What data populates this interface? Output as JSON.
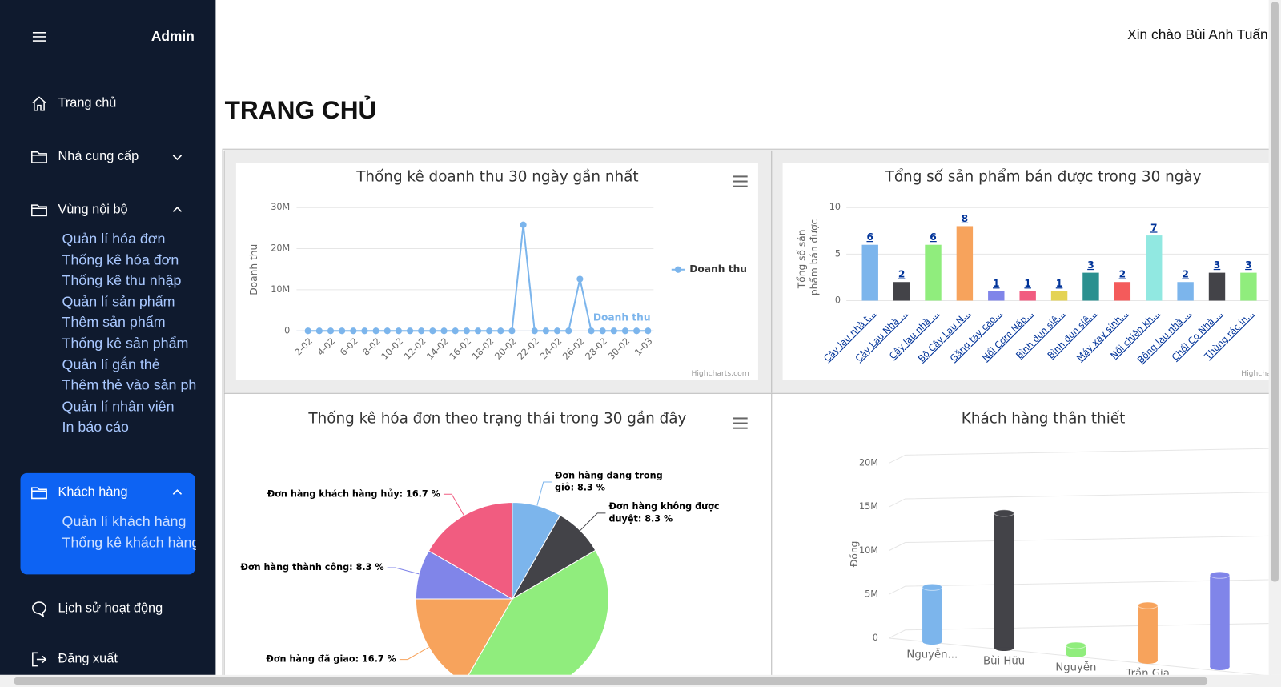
{
  "sidebar": {
    "brand": "Admin",
    "menu": [
      {
        "label": "Trang chủ"
      },
      {
        "label": "Nhà cung cấp"
      },
      {
        "label": "Vùng nội bộ",
        "children": [
          "Quản lí hóa đơn",
          "Thống kê hóa đơn",
          "Thống kê thu nhập",
          "Quản lí sản phẩm",
          "Thêm sản phẩm",
          "Thống kê sản phẩm",
          "Quản lí gắn thẻ",
          "Thêm thẻ vào sản phẩm",
          "Quản lí nhân viên",
          "In báo cáo"
        ]
      },
      {
        "label": "Khách hàng",
        "children": [
          "Quản lí khách hàng",
          "Thống kê khách hàng"
        ]
      },
      {
        "label": "Lịch sử hoạt động"
      },
      {
        "label": "Đăng xuất"
      }
    ]
  },
  "header": {
    "greeting": "Xin chào Bùi Anh Tuấn"
  },
  "page_title": "TRANG CHỦ",
  "chart_data": [
    {
      "type": "line",
      "title": "Thống kê doanh thu 30 ngày gần nhất",
      "y_label": "Doanh thu",
      "categories": [
        "2-02",
        null,
        "4-02",
        null,
        "6-02",
        null,
        "8-02",
        null,
        "10-02",
        null,
        "12-02",
        null,
        "14-02",
        null,
        "16-02",
        null,
        "18-02",
        null,
        "20-02",
        null,
        "22-02",
        null,
        "24-02",
        null,
        "26-02",
        null,
        "28-02",
        null,
        "30-02",
        null,
        "1-03"
      ],
      "series": [
        {
          "name": "Doanh thu",
          "color": "#7cb5ec",
          "values": [
            0,
            0,
            0,
            0,
            0,
            0,
            0,
            0,
            0,
            0,
            0,
            0,
            0,
            0,
            0,
            0,
            0,
            0,
            0,
            25800000,
            0,
            0,
            0,
            0,
            12600000,
            0,
            0,
            0,
            0,
            0,
            0
          ]
        }
      ],
      "ylim": [
        0,
        30000000
      ],
      "yticks": [
        0,
        {
          "value": 10000000,
          "label": "10M"
        },
        {
          "value": 20000000,
          "label": "20M"
        },
        {
          "value": 30000000,
          "label": "30M"
        }
      ],
      "grid": true,
      "legend": "right",
      "credits": "Highcharts.com"
    },
    {
      "type": "bar",
      "title": "Tổng số sản phẩm bán được trong 30 ngày",
      "y_label": "Tổng số sản phẩm bán được",
      "categories": [
        "Cây lau nhà t...",
        "Cây Lau Nhà ...",
        "Cây lau nhà ...",
        "Bộ Cây Lau N...",
        "Găng tay cao...",
        "Nồi Cơm Nấp...",
        "Bình đun siê...",
        "Bình đun siê...",
        "Máy xay sinh...",
        "Nồi chiên kh...",
        "Bông lau nhà ...",
        "Chổi Cọ Nhà ...",
        "Thùng rác in..."
      ],
      "values": [
        6,
        2,
        6,
        8,
        1,
        1,
        1,
        3,
        2,
        7,
        2,
        3,
        3
      ],
      "colors": [
        "#7cb5ec",
        "#434348",
        "#90ed7d",
        "#f7a35c",
        "#8085e9",
        "#f15c80",
        "#e4d354",
        "#2b908f",
        "#f45b5b",
        "#91e8e1",
        "#7cb5ec",
        "#434348",
        "#90ed7d"
      ],
      "ylim": [
        0,
        10
      ],
      "yticks": [
        0,
        5,
        10
      ],
      "grid": true,
      "credits": "Highcharts.com"
    },
    {
      "type": "pie",
      "title": "Thống kê hóa đơn theo trạng thái trong 30 gần đây",
      "values": [
        8.3,
        8.3,
        41.7,
        16.7,
        8.3,
        16.7
      ],
      "value_labels": [
        "Đơn hàng đang trong giỏ: 8.3 %",
        "Đơn hàng không được duyệt: 8.3 %",
        null,
        "Đơn hàng đã giao: 16.7 %",
        "Đơn hàng thành công: 8.3 %",
        "Đơn hàng khách hàng hủy: 16.7 %"
      ],
      "colors": [
        "#7cb5ec",
        "#434348",
        "#90ed7d",
        "#f7a35c",
        "#8085e9",
        "#f15c80"
      ]
    },
    {
      "type": "cylinder",
      "title": "Khách hàng thân thiết",
      "y_label": "Đồng",
      "categories": [
        "Nguyễn...",
        "Bùi Hữu",
        "Nguyễn",
        "Trần Gia",
        null
      ],
      "values": [
        6200000,
        15400000,
        1000000,
        6300000,
        10500000
      ],
      "colors": [
        "#7cb5ec",
        "#434348",
        "#90ed7d",
        "#f7a35c",
        "#8085e9"
      ],
      "ylim": [
        0,
        20000000
      ],
      "yticks": [
        0,
        {
          "value": 5000000,
          "label": "5M"
        },
        {
          "value": 10000000,
          "label": "10M"
        },
        {
          "value": 15000000,
          "label": "15M"
        },
        {
          "value": 20000000,
          "label": "20M"
        }
      ],
      "grid": true
    }
  ]
}
